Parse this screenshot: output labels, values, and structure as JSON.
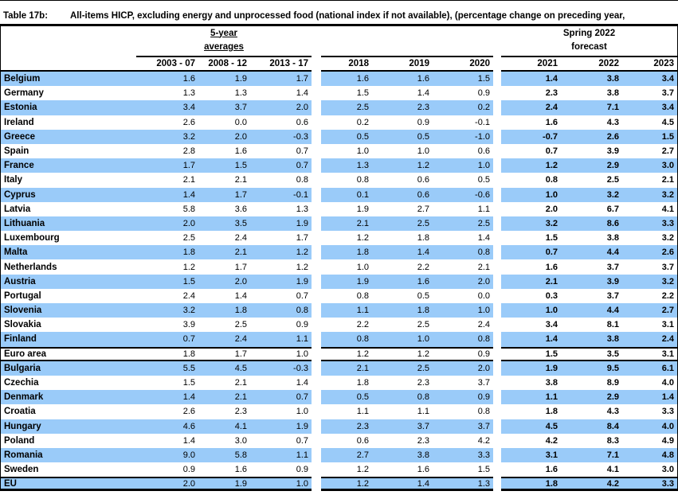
{
  "title": {
    "label": "Table 17b:",
    "text": "All-items HICP, excluding energy and unprocessed food (national index if not available), (percentage change on preceding year,"
  },
  "header": {
    "group_averages": {
      "line1": "5-year",
      "line2": "averages"
    },
    "group_forecast": {
      "line1": "Spring 2022",
      "line2": "forecast"
    },
    "year_columns": [
      "2003 - 07",
      "2008 - 12",
      "2013 - 17",
      "2018",
      "2019",
      "2020",
      "2021",
      "2022",
      "2023"
    ]
  },
  "colors": {
    "row_highlight_blue": "#9ACBF9",
    "rule_black": "#000000"
  },
  "table": {
    "type": "table",
    "rows": [
      {
        "country": "Belgium",
        "values": [
          "1.6",
          "1.9",
          "1.7",
          "1.6",
          "1.6",
          "1.5",
          "1.4",
          "3.8",
          "3.4"
        ],
        "highlighted": true,
        "sep_top": false,
        "sep_bottom": false,
        "sep_bottom_thick": false
      },
      {
        "country": "Germany",
        "values": [
          "1.3",
          "1.3",
          "1.4",
          "1.5",
          "1.4",
          "0.9",
          "2.3",
          "3.8",
          "3.7"
        ],
        "highlighted": false,
        "sep_top": false,
        "sep_bottom": false,
        "sep_bottom_thick": false
      },
      {
        "country": "Estonia",
        "values": [
          "3.4",
          "3.7",
          "2.0",
          "2.5",
          "2.3",
          "0.2",
          "2.4",
          "7.1",
          "3.4"
        ],
        "highlighted": true,
        "sep_top": false,
        "sep_bottom": false,
        "sep_bottom_thick": false
      },
      {
        "country": "Ireland",
        "values": [
          "2.6",
          "0.0",
          "0.6",
          "0.2",
          "0.9",
          "-0.1",
          "1.6",
          "4.3",
          "4.5"
        ],
        "highlighted": false,
        "sep_top": false,
        "sep_bottom": false,
        "sep_bottom_thick": false
      },
      {
        "country": "Greece",
        "values": [
          "3.2",
          "2.0",
          "-0.3",
          "0.5",
          "0.5",
          "-1.0",
          "-0.7",
          "2.6",
          "1.5"
        ],
        "highlighted": true,
        "sep_top": false,
        "sep_bottom": false,
        "sep_bottom_thick": false
      },
      {
        "country": "Spain",
        "values": [
          "2.8",
          "1.6",
          "0.7",
          "1.0",
          "1.0",
          "0.6",
          "0.7",
          "3.9",
          "2.7"
        ],
        "highlighted": false,
        "sep_top": false,
        "sep_bottom": false,
        "sep_bottom_thick": false
      },
      {
        "country": "France",
        "values": [
          "1.7",
          "1.5",
          "0.7",
          "1.3",
          "1.2",
          "1.0",
          "1.2",
          "2.9",
          "3.0"
        ],
        "highlighted": true,
        "sep_top": false,
        "sep_bottom": false,
        "sep_bottom_thick": false
      },
      {
        "country": "Italy",
        "values": [
          "2.1",
          "2.1",
          "0.8",
          "0.8",
          "0.6",
          "0.5",
          "0.8",
          "2.5",
          "2.1"
        ],
        "highlighted": false,
        "sep_top": false,
        "sep_bottom": false,
        "sep_bottom_thick": false
      },
      {
        "country": "Cyprus",
        "values": [
          "1.4",
          "1.7",
          "-0.1",
          "0.1",
          "0.6",
          "-0.6",
          "1.0",
          "3.2",
          "3.2"
        ],
        "highlighted": true,
        "sep_top": false,
        "sep_bottom": false,
        "sep_bottom_thick": false
      },
      {
        "country": "Latvia",
        "values": [
          "5.8",
          "3.6",
          "1.3",
          "1.9",
          "2.7",
          "1.1",
          "2.0",
          "6.7",
          "4.1"
        ],
        "highlighted": false,
        "sep_top": false,
        "sep_bottom": false,
        "sep_bottom_thick": false
      },
      {
        "country": "Lithuania",
        "values": [
          "2.0",
          "3.5",
          "1.9",
          "2.1",
          "2.5",
          "2.5",
          "3.2",
          "8.6",
          "3.3"
        ],
        "highlighted": true,
        "sep_top": false,
        "sep_bottom": false,
        "sep_bottom_thick": false
      },
      {
        "country": "Luxembourg",
        "values": [
          "2.5",
          "2.4",
          "1.7",
          "1.2",
          "1.8",
          "1.4",
          "1.5",
          "3.8",
          "3.2"
        ],
        "highlighted": false,
        "sep_top": false,
        "sep_bottom": false,
        "sep_bottom_thick": false
      },
      {
        "country": "Malta",
        "values": [
          "1.8",
          "2.1",
          "1.2",
          "1.8",
          "1.4",
          "0.8",
          "0.7",
          "4.4",
          "2.6"
        ],
        "highlighted": true,
        "sep_top": false,
        "sep_bottom": false,
        "sep_bottom_thick": false
      },
      {
        "country": "Netherlands",
        "values": [
          "1.2",
          "1.7",
          "1.2",
          "1.0",
          "2.2",
          "2.1",
          "1.6",
          "3.7",
          "3.7"
        ],
        "highlighted": false,
        "sep_top": false,
        "sep_bottom": false,
        "sep_bottom_thick": false
      },
      {
        "country": "Austria",
        "values": [
          "1.5",
          "2.0",
          "1.9",
          "1.9",
          "1.6",
          "2.0",
          "2.1",
          "3.9",
          "3.2"
        ],
        "highlighted": true,
        "sep_top": false,
        "sep_bottom": false,
        "sep_bottom_thick": false
      },
      {
        "country": "Portugal",
        "values": [
          "2.4",
          "1.4",
          "0.7",
          "0.8",
          "0.5",
          "0.0",
          "0.3",
          "3.7",
          "2.2"
        ],
        "highlighted": false,
        "sep_top": false,
        "sep_bottom": false,
        "sep_bottom_thick": false
      },
      {
        "country": "Slovenia",
        "values": [
          "3.2",
          "1.8",
          "0.8",
          "1.1",
          "1.8",
          "1.0",
          "1.0",
          "4.4",
          "2.7"
        ],
        "highlighted": true,
        "sep_top": false,
        "sep_bottom": false,
        "sep_bottom_thick": false
      },
      {
        "country": "Slovakia",
        "values": [
          "3.9",
          "2.5",
          "0.9",
          "2.2",
          "2.5",
          "2.4",
          "3.4",
          "8.1",
          "3.1"
        ],
        "highlighted": false,
        "sep_top": false,
        "sep_bottom": false,
        "sep_bottom_thick": false
      },
      {
        "country": "Finland",
        "values": [
          "0.7",
          "2.4",
          "1.1",
          "0.8",
          "1.0",
          "0.8",
          "1.4",
          "3.8",
          "2.4"
        ],
        "highlighted": true,
        "sep_top": false,
        "sep_bottom": false,
        "sep_bottom_thick": false
      },
      {
        "country": "Euro area",
        "values": [
          "1.8",
          "1.7",
          "1.0",
          "1.2",
          "1.2",
          "0.9",
          "1.5",
          "3.5",
          "3.1"
        ],
        "highlighted": false,
        "sep_top": true,
        "sep_bottom": true,
        "sep_bottom_thick": false
      },
      {
        "country": "Bulgaria",
        "values": [
          "5.5",
          "4.5",
          "-0.3",
          "2.1",
          "2.5",
          "2.0",
          "1.9",
          "9.5",
          "6.1"
        ],
        "highlighted": true,
        "sep_top": false,
        "sep_bottom": false,
        "sep_bottom_thick": false
      },
      {
        "country": "Czechia",
        "values": [
          "1.5",
          "2.1",
          "1.4",
          "1.8",
          "2.3",
          "3.7",
          "3.8",
          "8.9",
          "4.0"
        ],
        "highlighted": false,
        "sep_top": false,
        "sep_bottom": false,
        "sep_bottom_thick": false
      },
      {
        "country": "Denmark",
        "values": [
          "1.4",
          "2.1",
          "0.7",
          "0.5",
          "0.8",
          "0.9",
          "1.1",
          "2.9",
          "1.4"
        ],
        "highlighted": true,
        "sep_top": false,
        "sep_bottom": false,
        "sep_bottom_thick": false
      },
      {
        "country": "Croatia",
        "values": [
          "2.6",
          "2.3",
          "1.0",
          "1.1",
          "1.1",
          "0.8",
          "1.8",
          "4.3",
          "3.3"
        ],
        "highlighted": false,
        "sep_top": false,
        "sep_bottom": false,
        "sep_bottom_thick": false
      },
      {
        "country": "Hungary",
        "values": [
          "4.6",
          "4.1",
          "1.9",
          "2.3",
          "3.7",
          "3.7",
          "4.5",
          "8.4",
          "4.0"
        ],
        "highlighted": true,
        "sep_top": false,
        "sep_bottom": false,
        "sep_bottom_thick": false
      },
      {
        "country": "Poland",
        "values": [
          "1.4",
          "3.0",
          "0.7",
          "0.6",
          "2.3",
          "4.2",
          "4.2",
          "8.3",
          "4.9"
        ],
        "highlighted": false,
        "sep_top": false,
        "sep_bottom": false,
        "sep_bottom_thick": false
      },
      {
        "country": "Romania",
        "values": [
          "9.0",
          "5.8",
          "1.1",
          "2.7",
          "3.8",
          "3.3",
          "3.1",
          "7.1",
          "4.8"
        ],
        "highlighted": true,
        "sep_top": false,
        "sep_bottom": false,
        "sep_bottom_thick": false
      },
      {
        "country": "Sweden",
        "values": [
          "0.9",
          "1.6",
          "0.9",
          "1.2",
          "1.6",
          "1.5",
          "1.6",
          "4.1",
          "3.0"
        ],
        "highlighted": false,
        "sep_top": false,
        "sep_bottom": false,
        "sep_bottom_thick": false
      },
      {
        "country": "EU",
        "values": [
          "2.0",
          "1.9",
          "1.0",
          "1.2",
          "1.4",
          "1.3",
          "1.8",
          "4.2",
          "3.3"
        ],
        "highlighted": true,
        "sep_top": true,
        "sep_bottom": false,
        "sep_bottom_thick": true
      }
    ]
  }
}
